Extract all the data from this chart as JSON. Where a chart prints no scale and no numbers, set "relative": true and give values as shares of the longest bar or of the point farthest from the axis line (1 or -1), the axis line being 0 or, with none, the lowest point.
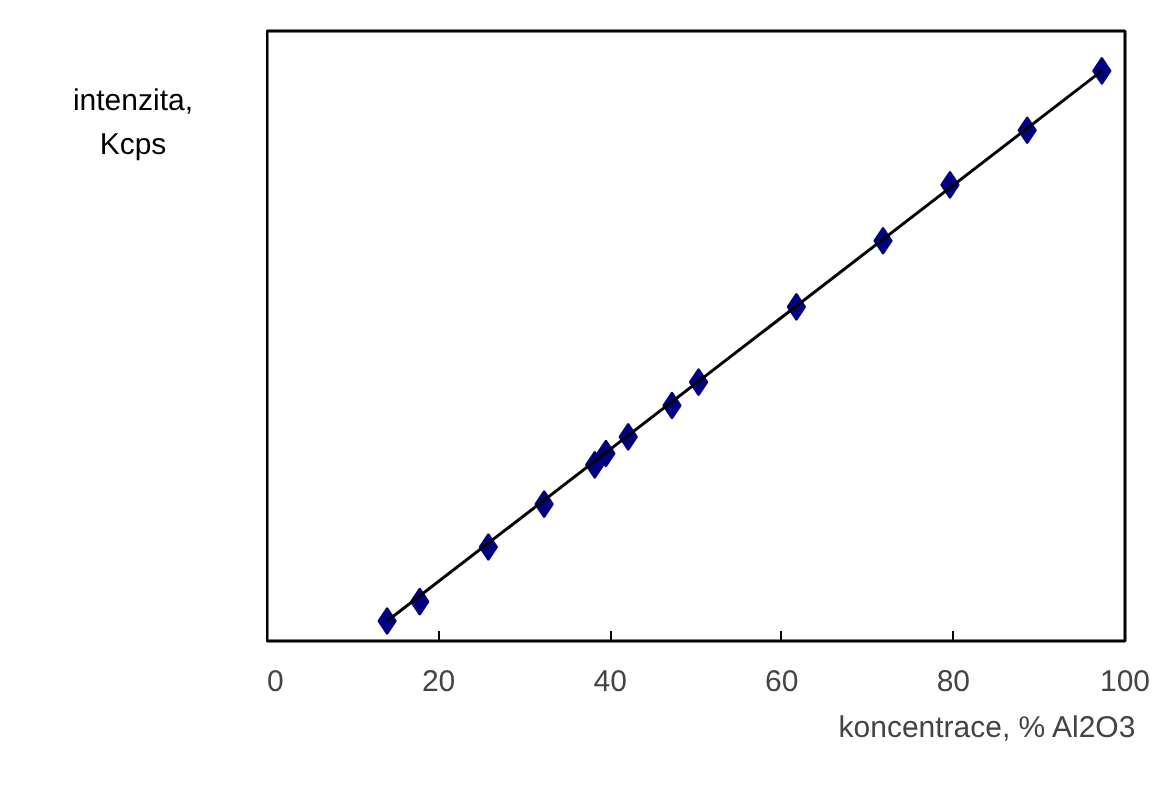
{
  "chart_data": {
    "type": "scatter",
    "relative": true,
    "xlabel": "koncentrace, % Al2O3",
    "ylabel": "intenzita,\nKcps",
    "xlim": [
      0,
      100
    ],
    "xticks": [
      0,
      20,
      40,
      60,
      80,
      100
    ],
    "grid": false,
    "series": [
      {
        "marker": "diamond",
        "color": "#000080",
        "x": [
          14.0,
          17.8,
          25.8,
          32.3,
          38.2,
          39.5,
          42.1,
          47.2,
          50.3,
          61.7,
          71.8,
          79.6,
          88.6,
          97.3
        ],
        "values": [
          0.035,
          0.069,
          0.165,
          0.24,
          0.309,
          0.329,
          0.358,
          0.413,
          0.454,
          0.586,
          0.702,
          0.8,
          0.896,
          1
        ]
      },
      {
        "type": "line",
        "marker": "none",
        "line_style": "solid",
        "color": "#000000",
        "x": [
          14.0,
          97.3
        ],
        "values": [
          0.035,
          1
        ]
      }
    ]
  }
}
